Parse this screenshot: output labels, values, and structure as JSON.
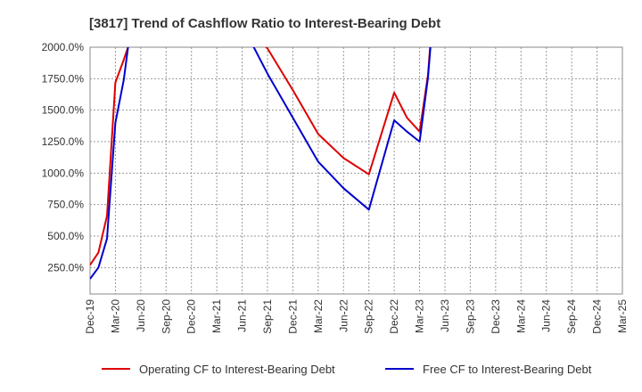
{
  "chart_data": {
    "type": "line",
    "title": "[3817]  Trend of Cashflow Ratio to Interest-Bearing Debt",
    "xlabel": "",
    "ylabel": "",
    "ylim": [
      40,
      2000
    ],
    "y_ticks": [
      "250.0%",
      "500.0%",
      "750.0%",
      "1000.0%",
      "1250.0%",
      "1500.0%",
      "1750.0%",
      "2000.0%"
    ],
    "y_tick_values": [
      250,
      500,
      750,
      1000,
      1250,
      1500,
      1750,
      2000
    ],
    "categories": [
      "Dec-19",
      "Mar-20",
      "Jun-20",
      "Sep-20",
      "Dec-20",
      "Mar-21",
      "Jun-21",
      "Sep-21",
      "Dec-21",
      "Mar-22",
      "Jun-22",
      "Sep-22",
      "Dec-22",
      "Mar-23",
      "Jun-23",
      "Sep-23",
      "Dec-23",
      "Mar-24",
      "Jun-24",
      "Sep-24",
      "Dec-24",
      "Mar-25"
    ],
    "grid": true,
    "legend_position": "bottom",
    "series": [
      {
        "name": "Operating CF to Interest-Bearing Debt",
        "color": "#dd0000",
        "points": [
          {
            "x": 0,
            "y": 270
          },
          {
            "x": 0.33,
            "y": 370
          },
          {
            "x": 0.67,
            "y": 660
          },
          {
            "x": 1,
            "y": 1720
          },
          {
            "x": 1.33,
            "y": 1900
          },
          {
            "x": 1.5,
            "y": 2000
          },
          {
            "x": 1.52,
            "y": 2100
          },
          {
            "x": 6.4,
            "y": 2100
          },
          {
            "x": 7,
            "y": 1990
          },
          {
            "x": 8,
            "y": 1660
          },
          {
            "x": 9,
            "y": 1310
          },
          {
            "x": 10,
            "y": 1120
          },
          {
            "x": 11,
            "y": 990
          },
          {
            "x": 12,
            "y": 1640
          },
          {
            "x": 12.5,
            "y": 1440
          },
          {
            "x": 13,
            "y": 1330
          },
          {
            "x": 13.33,
            "y": 1780
          },
          {
            "x": 13.45,
            "y": 2100
          }
        ]
      },
      {
        "name": "Free CF to Interest-Bearing Debt",
        "color": "#0000cc",
        "points": [
          {
            "x": 0,
            "y": 160
          },
          {
            "x": 0.33,
            "y": 250
          },
          {
            "x": 0.67,
            "y": 480
          },
          {
            "x": 1,
            "y": 1400
          },
          {
            "x": 1.33,
            "y": 1740
          },
          {
            "x": 1.5,
            "y": 2000
          },
          {
            "x": 1.55,
            "y": 2100
          },
          {
            "x": 6.2,
            "y": 2100
          },
          {
            "x": 7,
            "y": 1790
          },
          {
            "x": 8,
            "y": 1440
          },
          {
            "x": 9,
            "y": 1090
          },
          {
            "x": 10,
            "y": 880
          },
          {
            "x": 11,
            "y": 710
          },
          {
            "x": 12,
            "y": 1420
          },
          {
            "x": 12.5,
            "y": 1330
          },
          {
            "x": 13,
            "y": 1250
          },
          {
            "x": 13.33,
            "y": 1760
          },
          {
            "x": 13.47,
            "y": 2100
          }
        ]
      }
    ]
  }
}
